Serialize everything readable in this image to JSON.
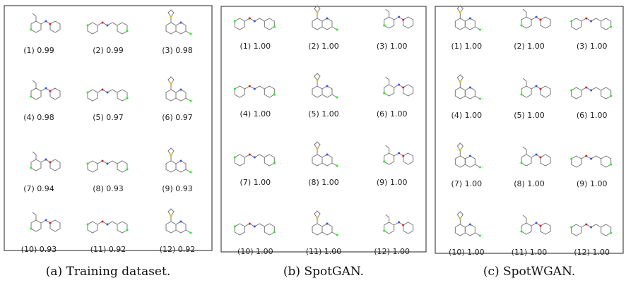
{
  "panels": [
    {
      "caption": "(a) Training dataset.",
      "items": [
        "(1) 0.99",
        "(2) 0.99",
        "(3) 0.98",
        "(4) 0.98",
        "(5) 0.97",
        "(6) 0.97",
        "(7) 0.94",
        "(8) 0.93",
        "(9) 0.93",
        "(10) 0.93",
        "(11) 0.92",
        "(12) 0.92"
      ]
    },
    {
      "caption": "(b) SpotGAN.",
      "items": [
        "(1) 1.00",
        "(2) 1.00",
        "(3) 1.00",
        "(4) 1.00",
        "(5) 1.00",
        "(6) 1.00",
        "(7) 1.00",
        "(8) 1.00",
        "(9) 1.00",
        "(10) 1.00",
        "(11) 1.00",
        "(12) 1.00"
      ]
    },
    {
      "caption": "(c) SpotWGAN.",
      "items": [
        "(1) 1.00",
        "(2) 1.00",
        "(3) 1.00",
        "(4) 1.00",
        "(5) 1.00",
        "(6) 1.00",
        "(7) 1.00",
        "(8) 1.00",
        "(9) 1.00",
        "(10) 1.00",
        "(11) 1.00",
        "(12) 1.00"
      ]
    }
  ]
}
